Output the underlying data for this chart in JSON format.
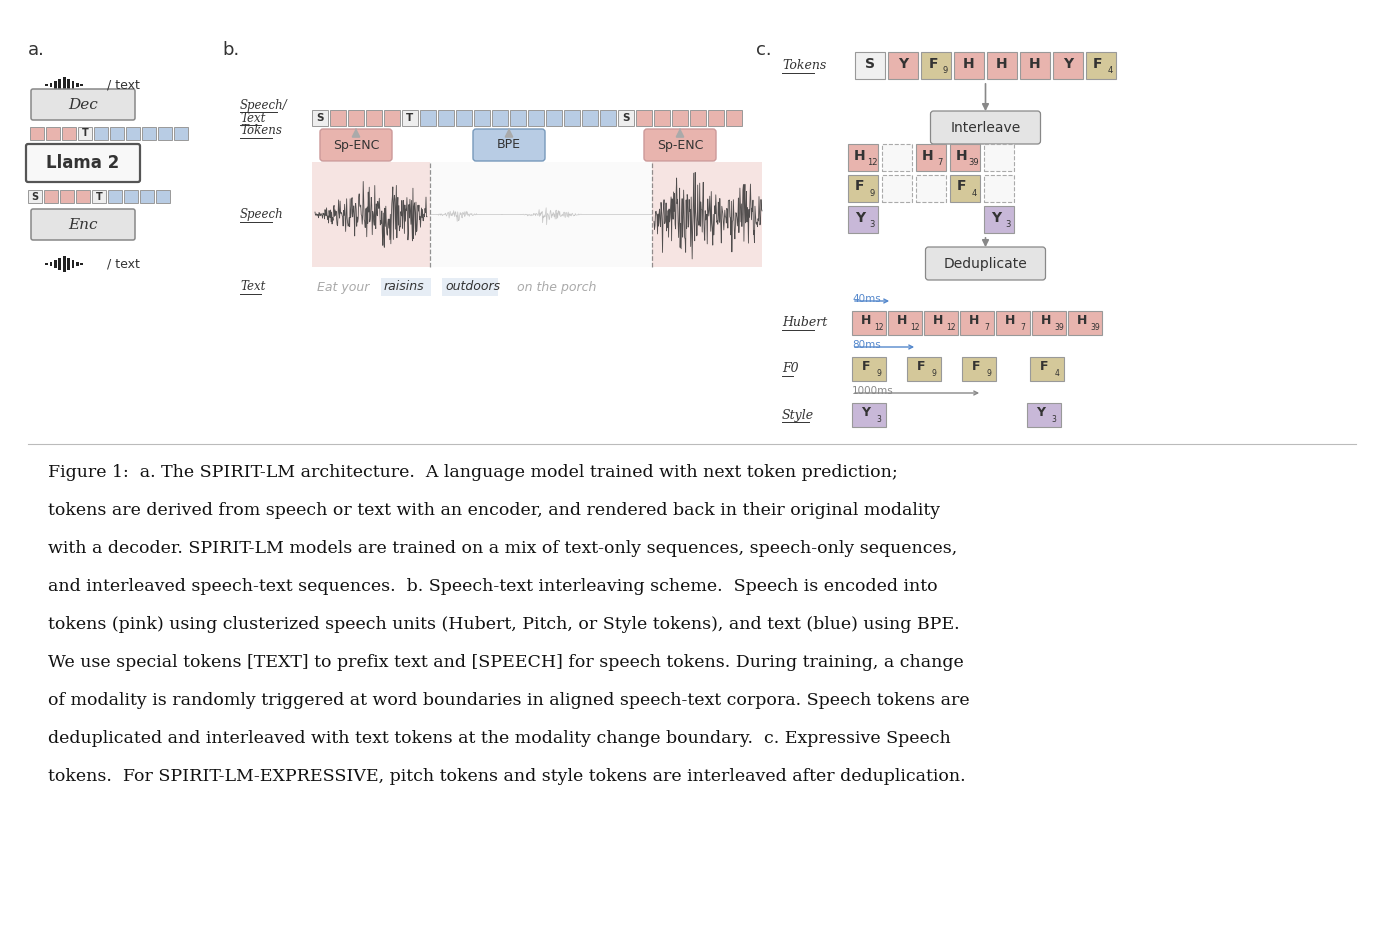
{
  "bg": "#ffffff",
  "pink": "#e8b4ae",
  "blue": "#b8cce4",
  "tan": "#d4c89a",
  "lavender": "#c8b8d8",
  "gray_box": "#e4e4e4",
  "dark": "#333333",
  "mid": "#888888",
  "light": "#cccccc",
  "blue_arrow": "#5588cc",
  "fig_w": 13.84,
  "fig_h": 9.36,
  "dpi": 100,
  "caption_lines": [
    "Figure 1:  a. The SPIRIT-LM architecture.  A language model trained with next token prediction;",
    "tokens are derived from speech or text with an encoder, and rendered back in their original modality",
    "with a decoder. SPIRIT-LM models are trained on a mix of text-only sequences, speech-only sequences,",
    "and interleaved speech-text sequences.  b. Speech-text interleaving scheme.  Speech is encoded into",
    "tokens (pink) using clusterized speech units (Hubert, Pitch, or Style tokens), and text (blue) using BPE.",
    "We use special tokens [TEXT] to prefix text and [SPEECH] for speech tokens. During training, a change",
    "of modality is randomly triggered at word boundaries in aligned speech-text corpora. Speech tokens are",
    "deduplicated and interleaved with text tokens at the modality change boundary.  c. Expressive Speech",
    "tokens.  For SPIRIT-LM-EXPRESSIVE, pitch tokens and style tokens are interleaved after deduplication."
  ]
}
